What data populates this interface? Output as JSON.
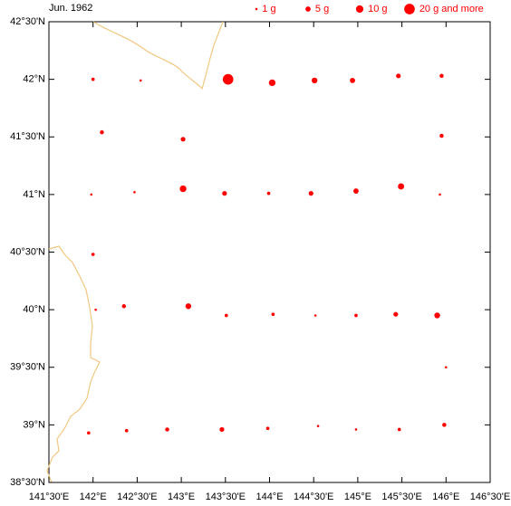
{
  "chart_data": {
    "type": "scatter",
    "title": "Jun. 1962",
    "color": "#ff0000",
    "xlim": [
      141.5,
      146.5
    ],
    "ylim": [
      38.5,
      42.5
    ],
    "xticks": [
      {
        "value": 141.5,
        "label": "141°30'E"
      },
      {
        "value": 142,
        "label": "142°E"
      },
      {
        "value": 142.5,
        "label": "142°30'E"
      },
      {
        "value": 143,
        "label": "143°E"
      },
      {
        "value": 143.5,
        "label": "143°30'E"
      },
      {
        "value": 144,
        "label": "144°E"
      },
      {
        "value": 144.5,
        "label": "144°30'E"
      },
      {
        "value": 145,
        "label": "145°E"
      },
      {
        "value": 145.5,
        "label": "145°30'E"
      },
      {
        "value": 146,
        "label": "146°E"
      },
      {
        "value": 146.5,
        "label": "146°30'E"
      }
    ],
    "yticks": [
      {
        "value": 38.5,
        "label": "38°30'N"
      },
      {
        "value": 39,
        "label": "39°N"
      },
      {
        "value": 39.5,
        "label": "39°30'N"
      },
      {
        "value": 40,
        "label": "40°N"
      },
      {
        "value": 40.5,
        "label": "40°30'N"
      },
      {
        "value": 41,
        "label": "41°N"
      },
      {
        "value": 41.5,
        "label": "41°30'N"
      },
      {
        "value": 42,
        "label": "42°N"
      },
      {
        "value": 42.5,
        "label": "42°30'N"
      }
    ],
    "legend": [
      {
        "label": "1 g",
        "size": 1
      },
      {
        "label": "5 g",
        "size": 5
      },
      {
        "label": "10 g",
        "size": 10
      },
      {
        "label": "20 g and more",
        "size": 20
      }
    ],
    "x": [
      142.0,
      142.54,
      143.53,
      144.03,
      144.51,
      144.94,
      145.46,
      145.95,
      142.1,
      143.02,
      145.95,
      141.98,
      142.47,
      143.02,
      143.49,
      143.99,
      144.47,
      144.98,
      145.49,
      145.93,
      142.0,
      142.03,
      142.35,
      143.08,
      143.51,
      144.04,
      144.52,
      144.98,
      145.43,
      145.9,
      146.0,
      141.95,
      142.38,
      142.84,
      143.46,
      143.98,
      144.55,
      144.98,
      145.47,
      145.98
    ],
    "values": [
      42.0,
      41.99,
      42.0,
      41.97,
      41.99,
      41.99,
      42.03,
      42.03,
      41.54,
      41.48,
      41.51,
      41.0,
      41.02,
      41.05,
      41.01,
      41.01,
      41.01,
      41.03,
      41.07,
      41.0,
      40.48,
      40.0,
      40.03,
      40.03,
      39.95,
      39.96,
      39.95,
      39.95,
      39.96,
      39.95,
      39.5,
      38.93,
      38.95,
      38.96,
      38.96,
      38.97,
      38.99,
      38.96,
      38.96,
      39.0
    ],
    "sizes": [
      2,
      1,
      20,
      8,
      6,
      5,
      4,
      3,
      3,
      4,
      3,
      1,
      1,
      8,
      4,
      2,
      4,
      5,
      7,
      1,
      2,
      1,
      3,
      6,
      2,
      2,
      1,
      2,
      4,
      6,
      1,
      2,
      2,
      3,
      4,
      2,
      1,
      1,
      2,
      3
    ]
  }
}
